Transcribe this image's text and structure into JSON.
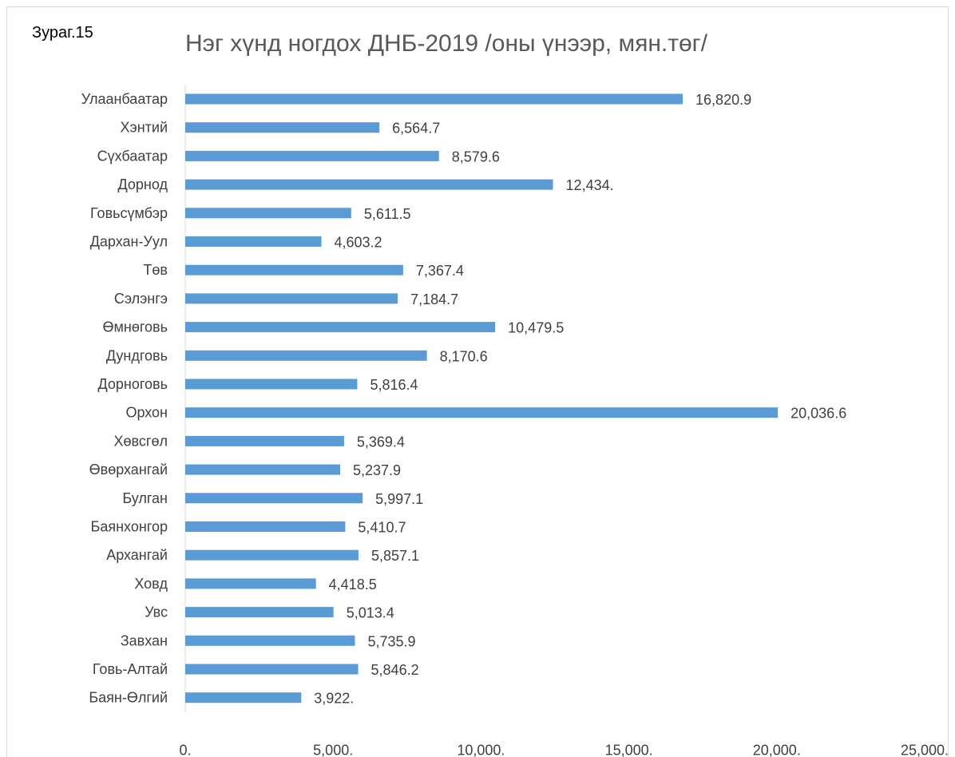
{
  "figure_label": "Зураг.15",
  "chart_data": {
    "type": "bar",
    "orientation": "horizontal",
    "title": "Нэг хүнд ногдох ДНБ-2019 /оны үнээр, мян.төг/",
    "xlabel": "",
    "ylabel": "",
    "xlim": [
      0,
      25000
    ],
    "grid": false,
    "legend": "none",
    "bar_color": "#5b9bd5",
    "categories": [
      "Улаанбаатар",
      "Хэнтий",
      "Сүхбаатар",
      "Дорнод",
      "Говьсүмбэр",
      "Дархан-Уул",
      "Төв",
      "Сэлэнгэ",
      "Өмнөговь",
      "Дундговь",
      "Дорноговь",
      "Орхон",
      "Хөвсгөл",
      "Өвөрхангай",
      "Булган",
      "Баянхонгор",
      "Архангай",
      "Ховд",
      "Увс",
      "Завхан",
      "Говь-Алтай",
      "Баян-Өлгий"
    ],
    "values": [
      16820.9,
      6564.7,
      8579.6,
      12434.0,
      5611.5,
      4603.2,
      7367.4,
      7184.7,
      10479.5,
      8170.6,
      5816.4,
      20036.6,
      5369.4,
      5237.9,
      5997.1,
      5410.7,
      5857.1,
      4418.5,
      5013.4,
      5735.9,
      5846.2,
      3922.0
    ],
    "value_labels": [
      "16,820.9",
      "6,564.7",
      "8,579.6",
      "12,434.",
      "5,611.5",
      "4,603.2",
      "7,367.4",
      "7,184.7",
      "10,479.5",
      "8,170.6",
      "5,816.4",
      "20,036.6",
      "5,369.4",
      "5,237.9",
      "5,997.1",
      "5,410.7",
      "5,857.1",
      "4,418.5",
      "5,013.4",
      "5,735.9",
      "5,846.2",
      "3,922."
    ],
    "ticks": [
      0,
      5000,
      10000,
      15000,
      20000,
      25000
    ],
    "tick_labels": [
      "0.",
      "5,000.",
      "10,000.",
      "15,000.",
      "20,000.",
      "25,000."
    ]
  }
}
